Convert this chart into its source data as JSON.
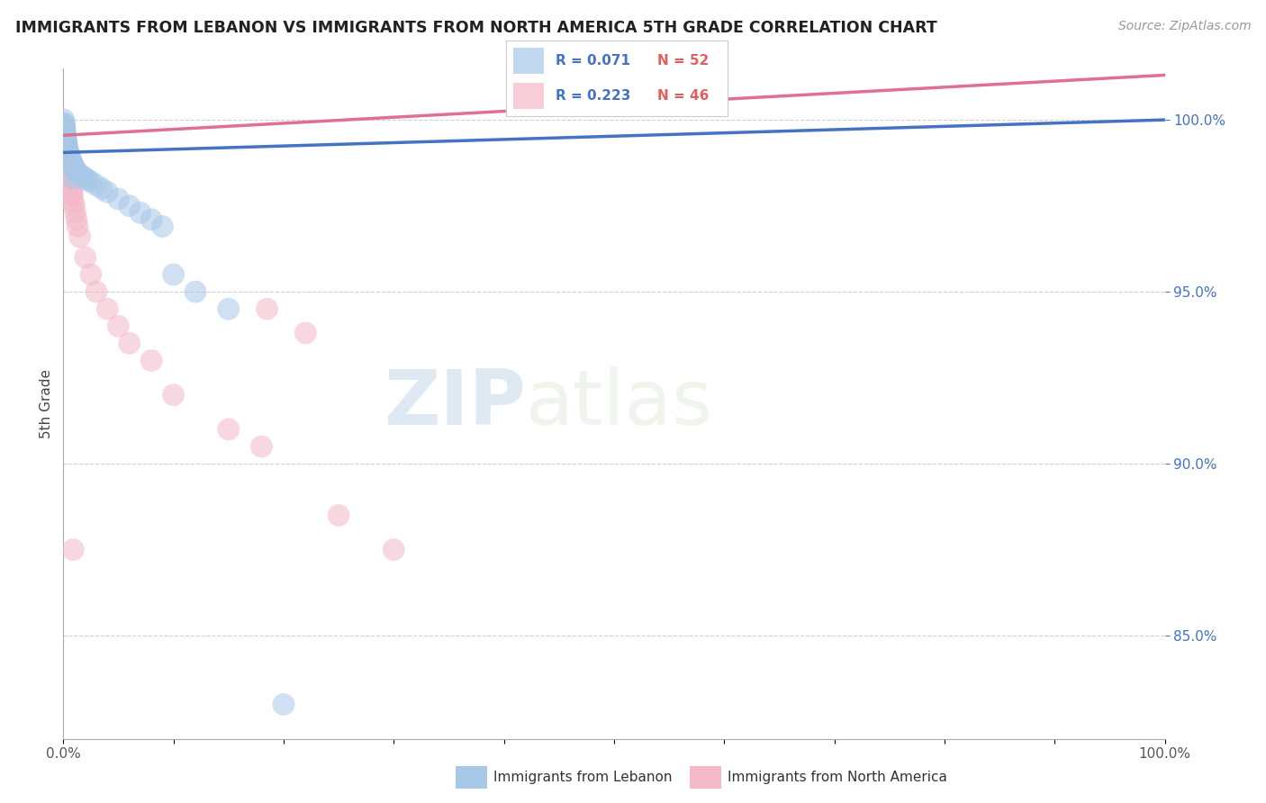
{
  "title": "IMMIGRANTS FROM LEBANON VS IMMIGRANTS FROM NORTH AMERICA 5TH GRADE CORRELATION CHART",
  "source": "Source: ZipAtlas.com",
  "ylabel": "5th Grade",
  "y_ticks": [
    85.0,
    90.0,
    95.0,
    100.0
  ],
  "y_tick_labels": [
    "85.0%",
    "90.0%",
    "95.0%",
    "100.0%"
  ],
  "xlim": [
    0.0,
    100.0
  ],
  "ylim": [
    82.0,
    101.5
  ],
  "legend_blue_R": "R = 0.071",
  "legend_blue_N": "N = 52",
  "legend_pink_R": "R = 0.223",
  "legend_pink_N": "N = 46",
  "blue_color": "#a8c8e8",
  "pink_color": "#f4b8c8",
  "blue_line_color": "#4472c4",
  "pink_line_color": "#e07090",
  "legend_R_color": "#4472c4",
  "legend_N_color": "#e06060",
  "blue_scatter_x": [
    0.05,
    0.08,
    0.1,
    0.1,
    0.12,
    0.13,
    0.15,
    0.16,
    0.18,
    0.2,
    0.22,
    0.25,
    0.28,
    0.3,
    0.3,
    0.35,
    0.35,
    0.4,
    0.4,
    0.45,
    0.5,
    0.5,
    0.55,
    0.6,
    0.65,
    0.7,
    0.8,
    0.85,
    0.9,
    1.0,
    1.1,
    1.2,
    1.3,
    1.5,
    1.8,
    2.0,
    2.2,
    2.5,
    3.0,
    3.5,
    4.0,
    5.0,
    6.0,
    7.0,
    8.0,
    9.0,
    10.0,
    12.0,
    15.0,
    20.0,
    0.07,
    0.9
  ],
  "blue_scatter_y": [
    100.0,
    99.9,
    99.85,
    99.8,
    99.75,
    99.7,
    99.65,
    99.6,
    99.55,
    99.5,
    99.45,
    99.4,
    99.35,
    99.3,
    99.25,
    99.2,
    99.15,
    99.1,
    99.1,
    99.05,
    99.0,
    99.0,
    98.95,
    98.9,
    98.85,
    98.8,
    98.75,
    98.7,
    98.65,
    98.6,
    98.55,
    98.5,
    98.45,
    98.4,
    98.35,
    98.3,
    98.25,
    98.2,
    98.1,
    98.0,
    97.9,
    97.7,
    97.5,
    97.3,
    97.1,
    96.9,
    95.5,
    95.0,
    94.5,
    83.0,
    99.85,
    98.3
  ],
  "pink_scatter_x": [
    0.05,
    0.08,
    0.1,
    0.12,
    0.15,
    0.18,
    0.2,
    0.22,
    0.25,
    0.28,
    0.3,
    0.35,
    0.4,
    0.45,
    0.5,
    0.55,
    0.6,
    0.65,
    0.7,
    0.75,
    0.8,
    0.85,
    0.9,
    1.0,
    1.1,
    1.2,
    1.3,
    1.5,
    2.0,
    2.5,
    3.0,
    4.0,
    5.0,
    6.0,
    8.0,
    10.0,
    15.0,
    18.0,
    25.0,
    30.0,
    18.5,
    22.0,
    0.3,
    0.6,
    0.15,
    0.9
  ],
  "pink_scatter_y": [
    99.8,
    99.7,
    99.65,
    99.6,
    99.5,
    99.4,
    99.35,
    99.3,
    99.2,
    99.1,
    99.0,
    98.9,
    98.8,
    98.7,
    98.5,
    98.4,
    98.3,
    98.2,
    98.1,
    98.0,
    97.9,
    97.8,
    97.6,
    97.5,
    97.3,
    97.1,
    96.9,
    96.6,
    96.0,
    95.5,
    95.0,
    94.5,
    94.0,
    93.5,
    93.0,
    92.0,
    91.0,
    90.5,
    88.5,
    87.5,
    94.5,
    93.8,
    99.1,
    98.3,
    99.55,
    87.5
  ],
  "watermark_zip": "ZIP",
  "watermark_atlas": "atlas",
  "background_color": "#ffffff",
  "grid_color": "#cccccc",
  "blue_trend_x0": 0.0,
  "blue_trend_y0": 99.05,
  "blue_trend_x1": 100.0,
  "blue_trend_y1": 100.0,
  "pink_trend_x0": 0.0,
  "pink_trend_y0": 99.55,
  "pink_trend_x1": 100.0,
  "pink_trend_y1": 101.3
}
